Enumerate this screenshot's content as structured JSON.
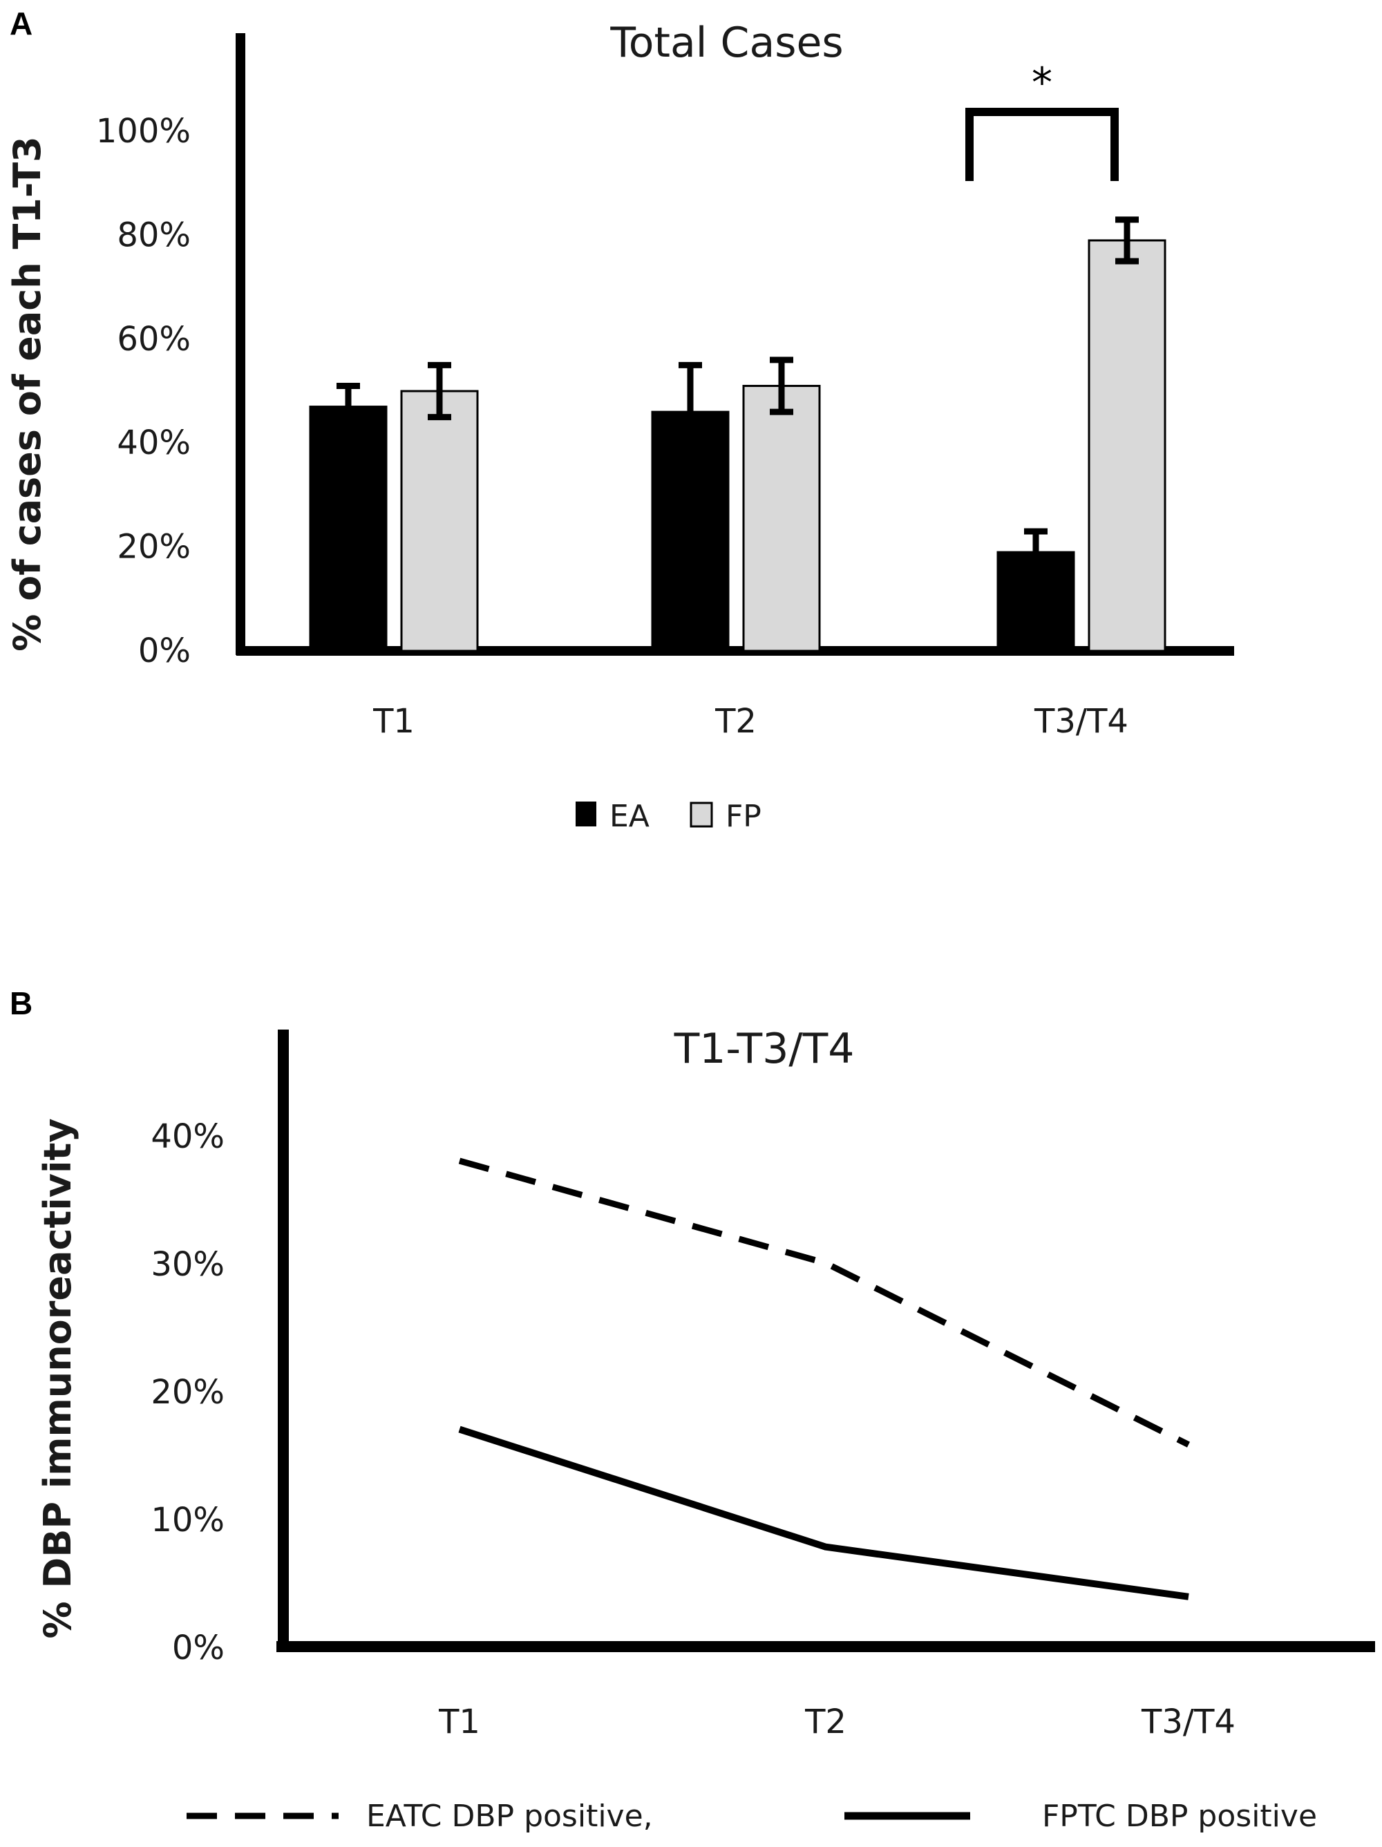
{
  "chart_data": [
    {
      "type": "bar",
      "panel": "A",
      "title": "Total Cases",
      "ylabel": "% of cases of each T1-T3",
      "xlabel": "",
      "categories": [
        "T1",
        "T2",
        "T3/T4"
      ],
      "ylim": [
        0,
        100
      ],
      "yticks": [
        "0%",
        "20%",
        "40%",
        "60%",
        "80%",
        "100%"
      ],
      "ytick_values": [
        0,
        20,
        40,
        60,
        80,
        100
      ],
      "series": [
        {
          "name": "EA",
          "color": "#000000",
          "values": [
            47,
            46,
            19
          ],
          "errors": [
            4,
            9,
            4
          ]
        },
        {
          "name": "FP",
          "color": "#d9d9d9",
          "values": [
            50,
            51,
            79
          ],
          "errors": [
            5,
            5,
            4
          ]
        }
      ],
      "annotation": "*",
      "annotation_between": [
        "T3/T4 EA",
        "T3/T4 FP"
      ],
      "grid": false,
      "legend_position": "bottom"
    },
    {
      "type": "line",
      "panel": "B",
      "title": "T1-T3/T4",
      "ylabel": "% DBP immunoreactivity",
      "xlabel": "",
      "categories": [
        "T1",
        "T2",
        "T3/T4"
      ],
      "ylim": [
        0,
        45
      ],
      "yticks": [
        "0%",
        "10%",
        "20%",
        "30%",
        "40%"
      ],
      "ytick_values": [
        0,
        10,
        20,
        30,
        40
      ],
      "series": [
        {
          "name": "EATC DBP positive,",
          "style": "dashed",
          "color": "#000000",
          "values": [
            38,
            30,
            15.8
          ]
        },
        {
          "name": "FPTC DBP positive",
          "style": "solid",
          "color": "#000000",
          "values": [
            17,
            7.8,
            3.9
          ]
        }
      ],
      "grid": false,
      "legend_position": "bottom"
    }
  ]
}
